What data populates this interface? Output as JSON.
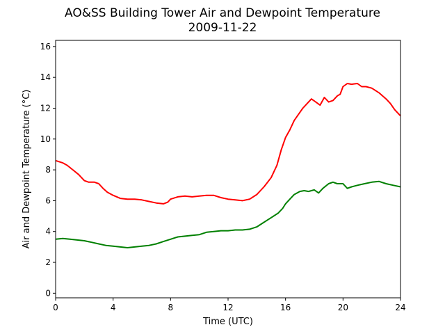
{
  "chart_data": {
    "type": "line",
    "title": "AO&SS Building Tower Air and Dewpoint Temperature",
    "subtitle": "2009-11-22",
    "xlabel": "Time (UTC)",
    "ylabel": "Air and Dewpoint Temperature (°C)",
    "xlim": [
      0,
      24
    ],
    "ylim": [
      -0.3,
      16.4
    ],
    "xticks": [
      0,
      4,
      8,
      12,
      16,
      20,
      24
    ],
    "yticks": [
      0,
      2,
      4,
      6,
      8,
      10,
      12,
      14,
      16
    ],
    "grid": false,
    "series": [
      {
        "color": "#ff0000",
        "x": [
          0,
          0.5,
          0.8,
          1.2,
          1.6,
          2.0,
          2.3,
          2.7,
          3.0,
          3.3,
          3.6,
          4.0,
          4.5,
          5.0,
          5.5,
          6.0,
          6.5,
          7.0,
          7.5,
          7.8,
          8.0,
          8.5,
          9.0,
          9.5,
          10.0,
          10.5,
          11.0,
          11.5,
          12.0,
          12.5,
          13.0,
          13.5,
          14.0,
          14.5,
          15.0,
          15.4,
          15.7,
          16.0,
          16.3,
          16.6,
          16.9,
          17.2,
          17.5,
          17.8,
          18.1,
          18.4,
          18.7,
          19.0,
          19.3,
          19.6,
          19.8,
          20.0,
          20.3,
          20.6,
          21.0,
          21.3,
          21.6,
          22.0,
          22.5,
          23.0,
          23.3,
          23.6,
          24.0
        ],
        "y": [
          8.6,
          8.45,
          8.3,
          8.0,
          7.7,
          7.3,
          7.2,
          7.2,
          7.1,
          6.8,
          6.55,
          6.35,
          6.15,
          6.1,
          6.1,
          6.05,
          5.95,
          5.85,
          5.8,
          5.9,
          6.1,
          6.25,
          6.3,
          6.25,
          6.3,
          6.35,
          6.35,
          6.2,
          6.1,
          6.05,
          6.0,
          6.1,
          6.4,
          6.9,
          7.5,
          8.3,
          9.3,
          10.1,
          10.6,
          11.2,
          11.6,
          12.0,
          12.3,
          12.6,
          12.4,
          12.2,
          12.7,
          12.4,
          12.5,
          12.8,
          12.9,
          13.4,
          13.6,
          13.55,
          13.6,
          13.4,
          13.4,
          13.3,
          13.0,
          12.6,
          12.3,
          11.9,
          11.5
        ]
      },
      {
        "color": "#008000",
        "x": [
          0,
          0.5,
          1.0,
          1.5,
          2.0,
          2.5,
          3.0,
          3.5,
          4.0,
          4.5,
          5.0,
          5.5,
          6.0,
          6.5,
          7.0,
          7.5,
          8.0,
          8.5,
          9.0,
          9.5,
          10.0,
          10.5,
          11.0,
          11.5,
          12.0,
          12.5,
          13.0,
          13.5,
          14.0,
          14.5,
          15.0,
          15.5,
          15.8,
          16.0,
          16.3,
          16.6,
          17.0,
          17.3,
          17.6,
          18.0,
          18.3,
          18.6,
          19.0,
          19.3,
          19.6,
          20.0,
          20.3,
          20.6,
          21.0,
          21.5,
          22.0,
          22.5,
          23.0,
          23.5,
          24.0
        ],
        "y": [
          3.5,
          3.55,
          3.5,
          3.45,
          3.4,
          3.3,
          3.2,
          3.1,
          3.05,
          3.0,
          2.95,
          3.0,
          3.05,
          3.1,
          3.2,
          3.35,
          3.5,
          3.65,
          3.7,
          3.75,
          3.8,
          3.95,
          4.0,
          4.05,
          4.05,
          4.1,
          4.1,
          4.15,
          4.3,
          4.6,
          4.9,
          5.2,
          5.5,
          5.8,
          6.1,
          6.4,
          6.6,
          6.65,
          6.6,
          6.7,
          6.5,
          6.8,
          7.1,
          7.2,
          7.1,
          7.1,
          6.8,
          6.9,
          7.0,
          7.1,
          7.2,
          7.25,
          7.1,
          7.0,
          6.9
        ]
      }
    ]
  }
}
